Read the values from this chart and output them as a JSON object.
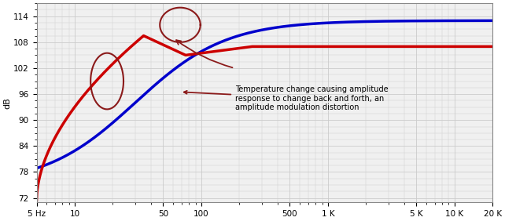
{
  "title": "",
  "ylabel": "dB",
  "yticks": [
    72,
    78,
    84,
    90,
    96,
    102,
    108,
    114
  ],
  "ylim": [
    71,
    117
  ],
  "xlim_log": [
    5,
    20000
  ],
  "xtick_positions": [
    5,
    10,
    50,
    100,
    500,
    1000,
    5000,
    10000,
    20000
  ],
  "xtick_labels": [
    "5 Hz",
    "10",
    "50",
    "100",
    "500",
    "1 K",
    "5 K",
    "10 K",
    "20 K"
  ],
  "blue_color": "#0000cc",
  "red_color": "#cc0000",
  "annotation_color": "#8b1a1a",
  "annotation_text": "Temperature change causing amplitude\nresponse to change back and forth, an\namplitude modulation distortion",
  "bg_color": "#f0f0f0",
  "grid_color": "#cccccc",
  "line_width": 2.5
}
